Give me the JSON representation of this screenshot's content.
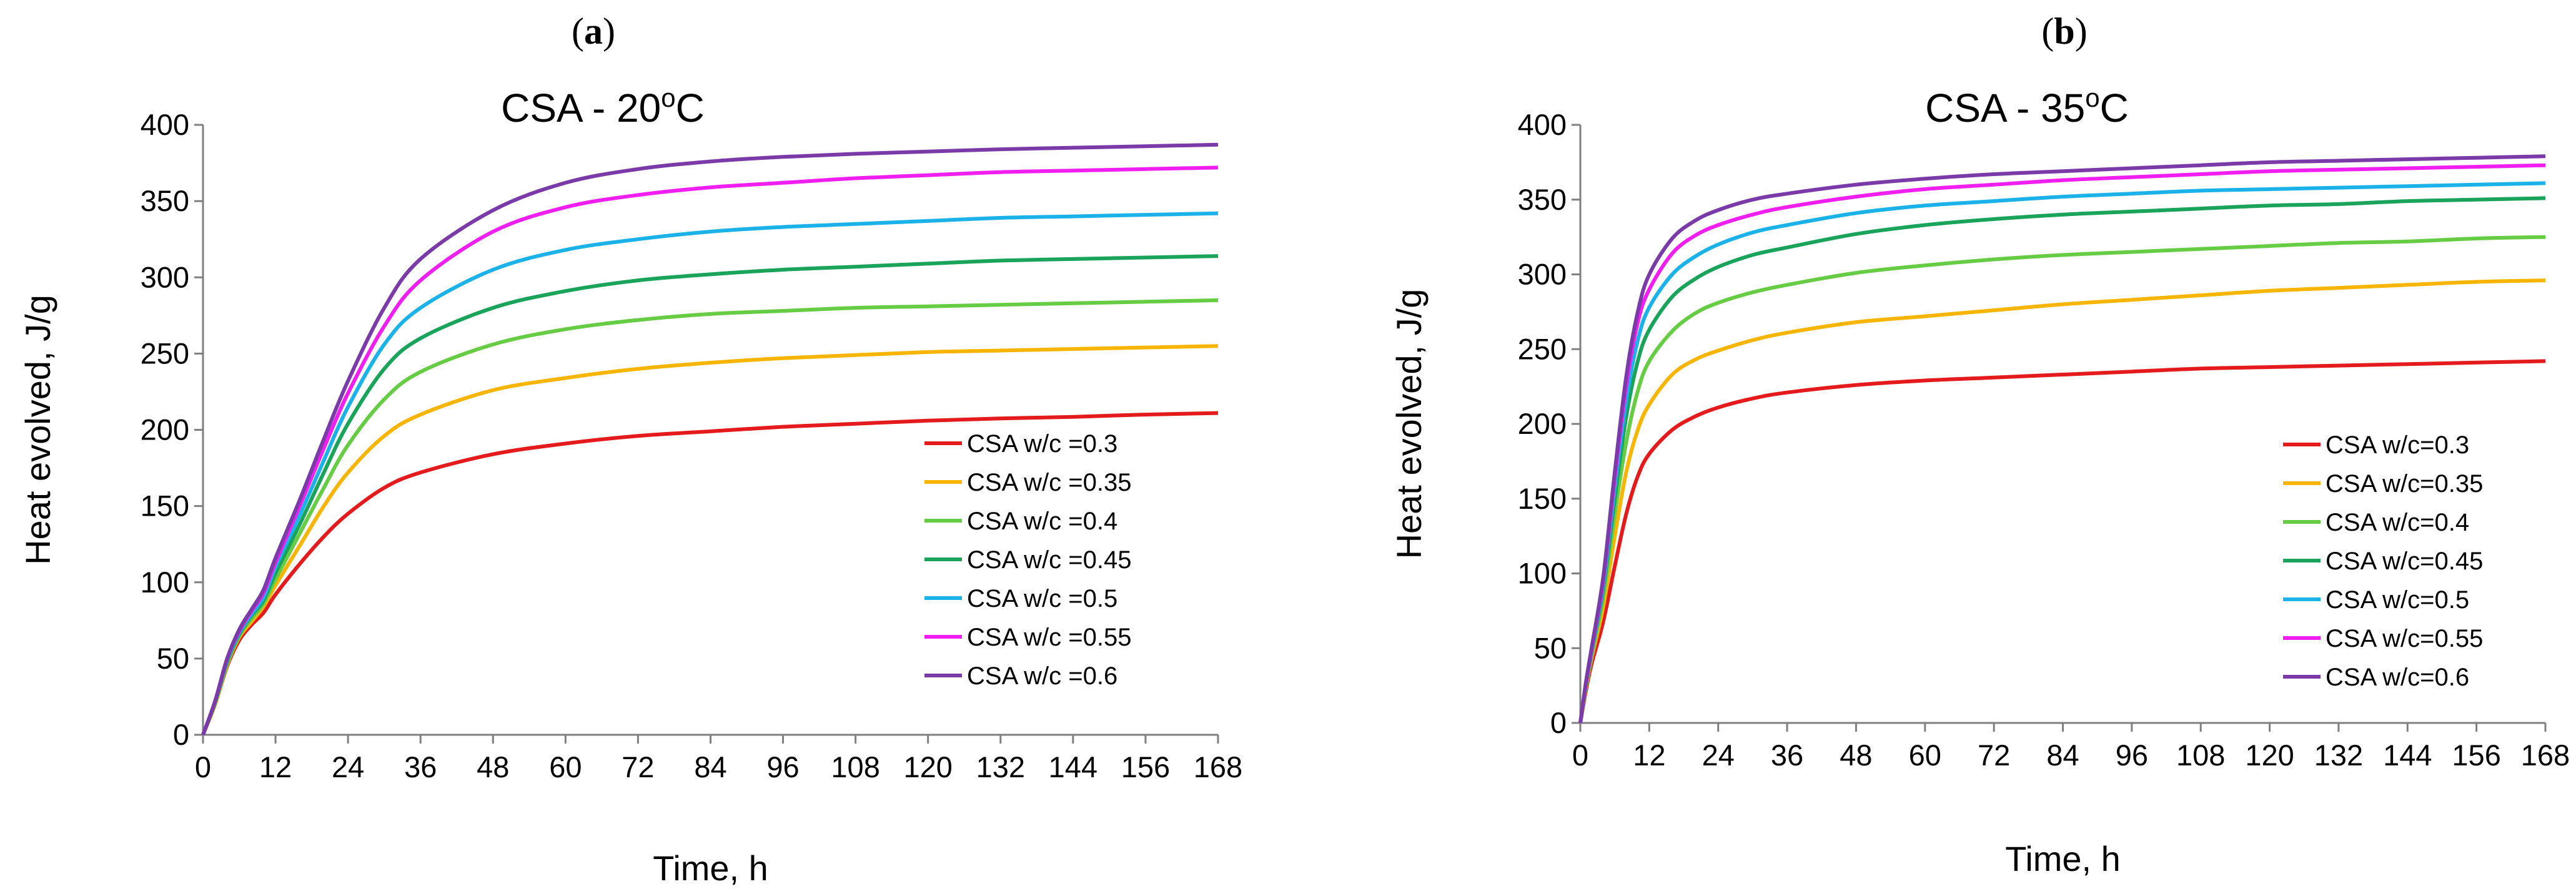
{
  "chart_data": [
    {
      "type": "line",
      "panel_letter": "a",
      "title": "CSA - 20",
      "title_sup": "o",
      "title_unit": "C",
      "xlabel": "Time, h",
      "ylabel": "Heat evolved, J/g",
      "xlim": [
        0,
        168
      ],
      "ylim": [
        0,
        400
      ],
      "xticks": [
        0,
        12,
        24,
        36,
        48,
        60,
        72,
        84,
        96,
        108,
        120,
        132,
        144,
        156,
        168
      ],
      "yticks": [
        0,
        50,
        100,
        150,
        200,
        250,
        300,
        350,
        400
      ],
      "grid": false,
      "legend_position": "bottom-right",
      "x": [
        0,
        2,
        4,
        6,
        8,
        10,
        12,
        16,
        20,
        24,
        30,
        36,
        48,
        60,
        72,
        84,
        96,
        108,
        120,
        132,
        144,
        156,
        168
      ],
      "series": [
        {
          "name": "CSA w/c =0.3",
          "color": "#e41a1c",
          "values": [
            0,
            20,
            45,
            62,
            72,
            80,
            92,
            112,
            130,
            145,
            162,
            172,
            184,
            191,
            196,
            199,
            202,
            204,
            206,
            207.5,
            208.5,
            210,
            211
          ]
        },
        {
          "name": "CSA w/c =0.35",
          "color": "#f7b500",
          "values": [
            0,
            20,
            46,
            64,
            74,
            84,
            98,
            124,
            150,
            172,
            196,
            210,
            226,
            234,
            240,
            244,
            247,
            249,
            251,
            252,
            253,
            254,
            255
          ]
        },
        {
          "name": "CSA w/c =0.4",
          "color": "#66cc44",
          "values": [
            0,
            21,
            47,
            65,
            76,
            86,
            102,
            132,
            162,
            190,
            220,
            238,
            256,
            266,
            272,
            276,
            278,
            280,
            281,
            282,
            283,
            284,
            285
          ]
        },
        {
          "name": "CSA w/c =0.45",
          "color": "#1aa35a",
          "values": [
            0,
            21,
            48,
            66,
            78,
            88,
            106,
            138,
            172,
            204,
            240,
            260,
            280,
            291,
            298,
            302,
            305,
            307,
            309,
            311,
            312,
            313,
            314
          ]
        },
        {
          "name": "CSA w/c =0.5",
          "color": "#1ab2e8",
          "values": [
            0,
            22,
            49,
            67,
            79,
            90,
            110,
            144,
            180,
            215,
            256,
            280,
            305,
            318,
            325,
            330,
            333,
            335,
            337,
            339,
            340,
            341,
            342
          ]
        },
        {
          "name": "CSA w/c =0.55",
          "color": "#f01ef0",
          "values": [
            0,
            22,
            50,
            68,
            81,
            93,
            113,
            150,
            188,
            224,
            268,
            298,
            330,
            346,
            354,
            359,
            362,
            365,
            367,
            369,
            370,
            371,
            372
          ]
        },
        {
          "name": "CSA w/c =0.6",
          "color": "#7a3aa8",
          "values": [
            0,
            22,
            50,
            69,
            82,
            95,
            116,
            154,
            194,
            232,
            280,
            312,
            344,
            362,
            371,
            376,
            379,
            381,
            382.5,
            384,
            385,
            386,
            387
          ]
        }
      ]
    },
    {
      "type": "line",
      "panel_letter": "b",
      "title": "CSA - 35",
      "title_sup": "o",
      "title_unit": "C",
      "xlabel": "Time, h",
      "ylabel": "Heat evolved, J/g",
      "xlim": [
        0,
        168
      ],
      "ylim": [
        0,
        400
      ],
      "xticks": [
        0,
        12,
        24,
        36,
        48,
        60,
        72,
        84,
        96,
        108,
        120,
        132,
        144,
        156,
        168
      ],
      "yticks": [
        0,
        50,
        100,
        150,
        200,
        250,
        300,
        350,
        400
      ],
      "grid": false,
      "legend_position": "bottom-right",
      "x": [
        0,
        1,
        2,
        4,
        6,
        8,
        10,
        12,
        16,
        20,
        24,
        30,
        36,
        48,
        60,
        72,
        84,
        96,
        108,
        120,
        132,
        144,
        156,
        168
      ],
      "series": [
        {
          "name": "CSA w/c=0.3",
          "color": "#e41a1c",
          "values": [
            0,
            22,
            40,
            68,
            105,
            140,
            165,
            180,
            196,
            205,
            211,
            217,
            221,
            226,
            229,
            231,
            233,
            235,
            237,
            238,
            239,
            240,
            241,
            242
          ]
        },
        {
          "name": "CSA w/c=0.35",
          "color": "#f7b500",
          "values": [
            0,
            24,
            44,
            78,
            125,
            168,
            196,
            213,
            233,
            243,
            249,
            256,
            261,
            268,
            272,
            276,
            280,
            283,
            286,
            289,
            291,
            293,
            295,
            296
          ]
        },
        {
          "name": "CSA w/c=0.4",
          "color": "#66cc44",
          "values": [
            0,
            25,
            46,
            85,
            140,
            188,
            222,
            242,
            262,
            274,
            281,
            288,
            293,
            301,
            306,
            310,
            313,
            315,
            317,
            319,
            321,
            322,
            324,
            325
          ]
        },
        {
          "name": "CSA w/c=0.45",
          "color": "#1aa35a",
          "values": [
            0,
            26,
            48,
            90,
            150,
            205,
            242,
            263,
            285,
            297,
            305,
            313,
            318,
            327,
            333,
            337,
            340,
            342,
            344,
            346,
            347,
            349,
            350,
            351
          ]
        },
        {
          "name": "CSA w/c=0.5",
          "color": "#1ab2e8",
          "values": [
            0,
            27,
            49,
            93,
            158,
            216,
            256,
            278,
            300,
            312,
            320,
            328,
            333,
            341,
            346,
            349,
            352,
            354,
            356,
            357,
            358,
            359,
            360,
            361
          ]
        },
        {
          "name": "CSA w/c=0.55",
          "color": "#f01ef0",
          "values": [
            0,
            27,
            50,
            96,
            164,
            226,
            268,
            290,
            314,
            326,
            333,
            340,
            345,
            352,
            357,
            360,
            363,
            365,
            367,
            369,
            370,
            371,
            372,
            373
          ]
        },
        {
          "name": "CSA w/c=0.6",
          "color": "#7a3aa8",
          "values": [
            0,
            28,
            51,
            98,
            168,
            232,
            275,
            300,
            324,
            336,
            343,
            350,
            354,
            360,
            364,
            367,
            369,
            371,
            373,
            375,
            376,
            377,
            378,
            379
          ]
        }
      ]
    }
  ]
}
